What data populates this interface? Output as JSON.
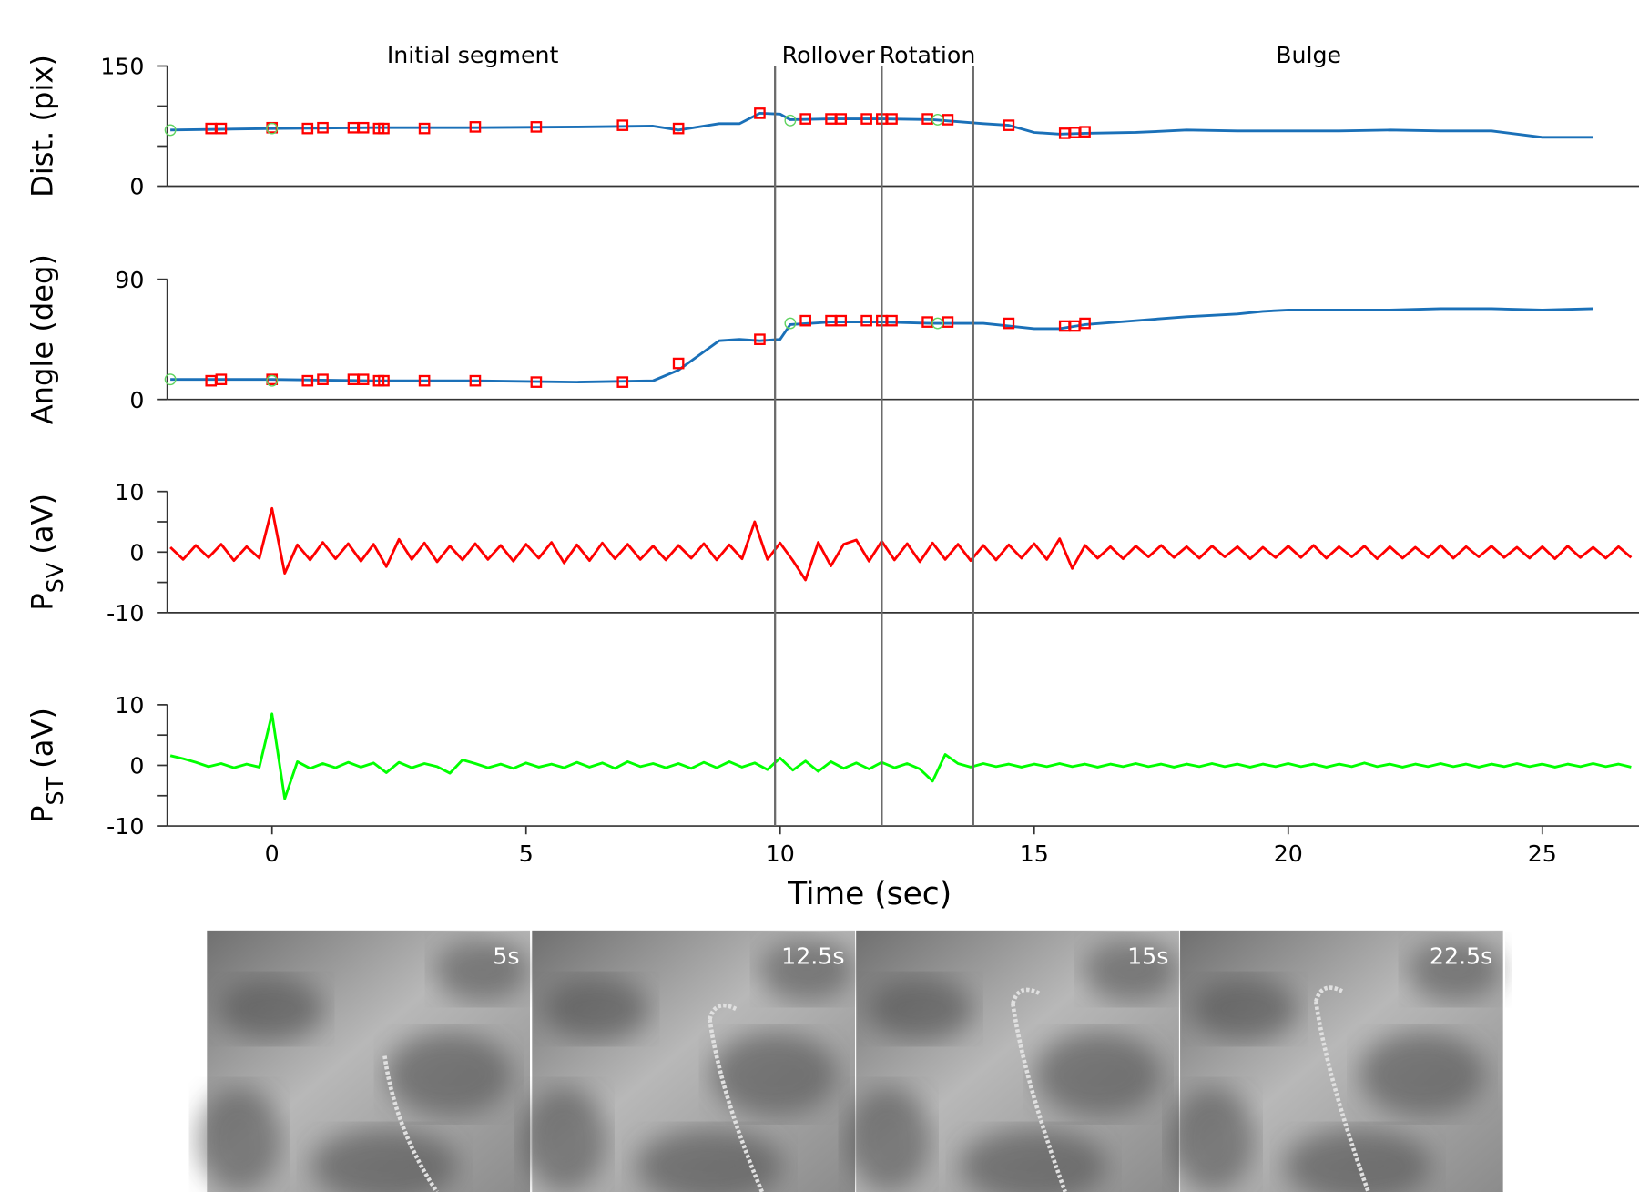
{
  "phases": {
    "labels": [
      "Initial segment",
      "Rollover",
      "Rotation",
      "Bulge"
    ],
    "boundaries": [
      9.9,
      12.0,
      13.8
    ]
  },
  "frames": [
    {
      "label": "5s"
    },
    {
      "label": "12.5s"
    },
    {
      "label": "15s"
    },
    {
      "label": "22.5s"
    }
  ],
  "chart_data": [
    {
      "type": "line",
      "ylabel": "Dist. (pix)",
      "xlim": [
        -2,
        27
      ],
      "ylim": [
        0,
        150
      ],
      "yticks": [
        0,
        150
      ],
      "yminor": [
        50,
        100
      ],
      "series": [
        {
          "color": "#1a70b8",
          "x": [
            -2,
            0,
            2,
            4,
            6,
            7.5,
            8,
            8.8,
            9.2,
            9.6,
            10,
            10.2,
            11,
            12,
            13,
            14,
            14.5,
            15,
            15.5,
            16,
            17,
            18,
            19,
            20,
            21,
            22,
            23,
            24,
            25,
            26
          ],
          "values": [
            70,
            72,
            73,
            73,
            74,
            75,
            70,
            78,
            78,
            91,
            90,
            83,
            84,
            84,
            83,
            78,
            76,
            67,
            65,
            66,
            67,
            70,
            69,
            69,
            69,
            70,
            69,
            69,
            61,
            61
          ]
        },
        {
          "color": "#ff0000",
          "marker": "square",
          "x": [
            -1.2,
            -1,
            0,
            0.7,
            1,
            1.6,
            1.8,
            2.1,
            2.2,
            3,
            4,
            5.2,
            6.9,
            8,
            9.6,
            10.5,
            11,
            11.2,
            11.7,
            12,
            12.2,
            12.9,
            13.3,
            14.5,
            15.6,
            15.8,
            16
          ],
          "values": [
            72,
            72,
            73,
            72,
            73,
            73,
            73,
            72,
            72,
            72,
            74,
            74,
            76,
            72,
            91,
            84,
            84,
            84,
            84,
            84,
            84,
            84,
            83,
            76,
            66,
            67,
            68
          ]
        },
        {
          "color": "#5fd35f",
          "marker": "circle",
          "x": [
            -2,
            0,
            10.2,
            13.1
          ],
          "values": [
            70,
            72,
            82,
            83
          ]
        }
      ]
    },
    {
      "type": "line",
      "ylabel": "Angle (deg)",
      "xlim": [
        -2,
        27
      ],
      "ylim": [
        0,
        90
      ],
      "yticks": [
        0,
        90
      ],
      "series": [
        {
          "color": "#1a70b8",
          "x": [
            -2,
            0,
            2,
            4,
            6,
            7.5,
            8,
            8.8,
            9.2,
            9.6,
            10,
            10.2,
            11,
            12,
            13,
            14,
            15,
            15.5,
            16,
            17,
            18,
            19,
            19.5,
            20,
            22,
            23,
            24,
            25,
            26
          ],
          "values": [
            15,
            15,
            14,
            14,
            13,
            14,
            22,
            44,
            45,
            44,
            45,
            56,
            58,
            58,
            57,
            57,
            53,
            53,
            56,
            59,
            62,
            64,
            66,
            67,
            67,
            68,
            68,
            67,
            68
          ]
        },
        {
          "color": "#ff0000",
          "marker": "square",
          "x": [
            -1.2,
            -1,
            0,
            0.7,
            1,
            1.6,
            1.8,
            2.1,
            2.2,
            3,
            4,
            5.2,
            6.9,
            8,
            9.6,
            10.5,
            11,
            11.2,
            11.7,
            12,
            12.2,
            12.9,
            13.3,
            14.5,
            15.6,
            15.8,
            16
          ],
          "values": [
            14,
            15,
            15,
            14,
            15,
            15,
            15,
            14,
            14,
            14,
            14,
            13,
            13,
            27,
            45,
            59,
            59,
            59,
            59,
            59,
            59,
            58,
            58,
            57,
            55,
            55,
            57
          ]
        },
        {
          "color": "#5fd35f",
          "marker": "circle",
          "x": [
            -2,
            0,
            10.2,
            13.1
          ],
          "values": [
            15,
            14,
            57,
            57
          ]
        }
      ]
    },
    {
      "type": "line",
      "ylabel": {
        "text": "P",
        "sub": "SV",
        "unit": "(aV)"
      },
      "xlim": [
        -2,
        27
      ],
      "ylim": [
        -10,
        10
      ],
      "yticks": [
        -10,
        0,
        10
      ],
      "yminor": [
        -5,
        5
      ],
      "series": [
        {
          "color": "#ff0000",
          "x": [
            -2,
            -1.75,
            -1.5,
            -1.25,
            -1,
            -0.75,
            -0.5,
            -0.25,
            0,
            0.25,
            0.5,
            0.75,
            1,
            1.25,
            1.5,
            1.75,
            2,
            2.25,
            2.5,
            2.75,
            3,
            3.25,
            3.5,
            3.75,
            4,
            4.25,
            4.5,
            4.75,
            5,
            5.25,
            5.5,
            5.75,
            6,
            6.25,
            6.5,
            6.75,
            7,
            7.25,
            7.5,
            7.75,
            8,
            8.25,
            8.5,
            8.75,
            9,
            9.25,
            9.5,
            9.75,
            10,
            10.25,
            10.5,
            10.75,
            11,
            11.25,
            11.5,
            11.75,
            12,
            12.25,
            12.5,
            12.75,
            13,
            13.25,
            13.5,
            13.75,
            14,
            14.25,
            14.5,
            14.75,
            15,
            15.25,
            15.5,
            15.75,
            16,
            16.25,
            16.5,
            16.75,
            17,
            17.25,
            17.5,
            17.75,
            18,
            18.25,
            18.5,
            18.75,
            19,
            19.25,
            19.5,
            19.75,
            20,
            20.25,
            20.5,
            20.75,
            21,
            21.25,
            21.5,
            21.75,
            22,
            22.25,
            22.5,
            22.75,
            23,
            23.25,
            23.5,
            23.75,
            24,
            24.25,
            24.5,
            24.75,
            25,
            25.25,
            25.5,
            25.75,
            26,
            26.25,
            26.5,
            26.75
          ],
          "values": [
            0.8,
            -1.2,
            1.1,
            -0.9,
            1.3,
            -1.4,
            0.9,
            -1.0,
            7.2,
            -3.5,
            1.2,
            -1.3,
            1.6,
            -1.1,
            1.4,
            -1.5,
            1.3,
            -2.4,
            2.1,
            -1.2,
            1.5,
            -1.6,
            1.0,
            -1.3,
            1.4,
            -1.2,
            1.1,
            -1.5,
            1.3,
            -1.0,
            1.6,
            -1.8,
            1.2,
            -1.4,
            1.5,
            -1.1,
            1.3,
            -1.2,
            1.0,
            -1.3,
            1.1,
            -1.0,
            1.4,
            -1.3,
            1.2,
            -1.1,
            5.0,
            -1.2,
            1.5,
            -1.4,
            -4.6,
            1.6,
            -2.3,
            1.3,
            2.0,
            -1.5,
            1.8,
            -1.3,
            1.4,
            -1.6,
            1.5,
            -1.2,
            1.3,
            -1.4,
            1.1,
            -1.3,
            1.2,
            -1.0,
            1.4,
            -1.2,
            2.2,
            -2.7,
            1.1,
            -1.0,
            0.9,
            -1.1,
            1.0,
            -0.8,
            1.1,
            -0.9,
            0.9,
            -1.0,
            1.0,
            -0.8,
            0.9,
            -1.1,
            0.8,
            -0.9,
            1.0,
            -0.9,
            1.1,
            -1.0,
            0.9,
            -0.8,
            1.0,
            -1.1,
            0.9,
            -1.0,
            0.8,
            -0.9,
            1.1,
            -1.0,
            0.9,
            -0.8,
            1.0,
            -0.9,
            0.8,
            -1.0,
            0.9,
            -1.1,
            1.0,
            -0.9,
            0.8,
            -1.0,
            0.9,
            -0.9
          ]
        }
      ]
    },
    {
      "type": "line",
      "ylabel": {
        "text": "P",
        "sub": "ST",
        "unit": "(aV)"
      },
      "xlabel": "Time (sec)",
      "xlim": [
        -2,
        27
      ],
      "xticks": [
        0,
        5,
        10,
        15,
        20,
        25
      ],
      "ylim": [
        -10,
        10
      ],
      "yticks": [
        -10,
        0,
        10
      ],
      "yminor": [
        -5,
        5
      ],
      "series": [
        {
          "color": "#00ff00",
          "x": [
            -2,
            -1.75,
            -1.5,
            -1.25,
            -1,
            -0.75,
            -0.5,
            -0.25,
            0,
            0.25,
            0.5,
            0.75,
            1,
            1.25,
            1.5,
            1.75,
            2,
            2.25,
            2.5,
            2.75,
            3,
            3.25,
            3.5,
            3.75,
            4,
            4.25,
            4.5,
            4.75,
            5,
            5.25,
            5.5,
            5.75,
            6,
            6.25,
            6.5,
            6.75,
            7,
            7.25,
            7.5,
            7.75,
            8,
            8.25,
            8.5,
            8.75,
            9,
            9.25,
            9.5,
            9.75,
            10,
            10.25,
            10.5,
            10.75,
            11,
            11.25,
            11.5,
            11.75,
            12,
            12.25,
            12.5,
            12.75,
            13,
            13.25,
            13.5,
            13.75,
            14,
            14.25,
            14.5,
            14.75,
            15,
            15.25,
            15.5,
            15.75,
            16,
            16.25,
            16.5,
            16.75,
            17,
            17.25,
            17.5,
            17.75,
            18,
            18.25,
            18.5,
            18.75,
            19,
            19.25,
            19.5,
            19.75,
            20,
            20.25,
            20.5,
            20.75,
            21,
            21.25,
            21.5,
            21.75,
            22,
            22.25,
            22.5,
            22.75,
            23,
            23.25,
            23.5,
            23.75,
            24,
            24.25,
            24.5,
            24.75,
            25,
            25.25,
            25.5,
            25.75,
            26,
            26.25,
            26.5,
            26.75
          ],
          "values": [
            1.6,
            1.1,
            0.5,
            -0.2,
            0.3,
            -0.4,
            0.2,
            -0.3,
            8.5,
            -5.5,
            0.6,
            -0.5,
            0.3,
            -0.4,
            0.5,
            -0.3,
            0.4,
            -1.2,
            0.5,
            -0.4,
            0.3,
            -0.2,
            -1.3,
            0.9,
            0.3,
            -0.4,
            0.2,
            -0.5,
            0.4,
            -0.3,
            0.2,
            -0.4,
            0.5,
            -0.3,
            0.4,
            -0.5,
            0.6,
            -0.2,
            0.3,
            -0.4,
            0.3,
            -0.5,
            0.5,
            -0.4,
            0.6,
            -0.3,
            0.4,
            -0.7,
            1.2,
            -0.8,
            0.7,
            -1.0,
            0.6,
            -0.5,
            0.4,
            -0.6,
            0.5,
            -0.4,
            0.3,
            -0.6,
            -2.6,
            1.8,
            0.3,
            -0.3,
            0.3,
            -0.2,
            0.2,
            -0.3,
            0.2,
            -0.2,
            0.3,
            -0.2,
            0.2,
            -0.3,
            0.2,
            -0.2,
            0.3,
            -0.2,
            0.2,
            -0.3,
            0.2,
            -0.2,
            0.3,
            -0.2,
            0.2,
            -0.3,
            0.2,
            -0.2,
            0.3,
            -0.2,
            0.2,
            -0.3,
            0.2,
            -0.2,
            0.4,
            -0.2,
            0.2,
            -0.3,
            0.2,
            -0.2,
            0.3,
            -0.2,
            0.2,
            -0.3,
            0.2,
            -0.2,
            0.3,
            -0.2,
            0.2,
            -0.3,
            0.2,
            -0.2,
            0.3,
            -0.2,
            0.2,
            -0.3
          ]
        }
      ]
    }
  ]
}
